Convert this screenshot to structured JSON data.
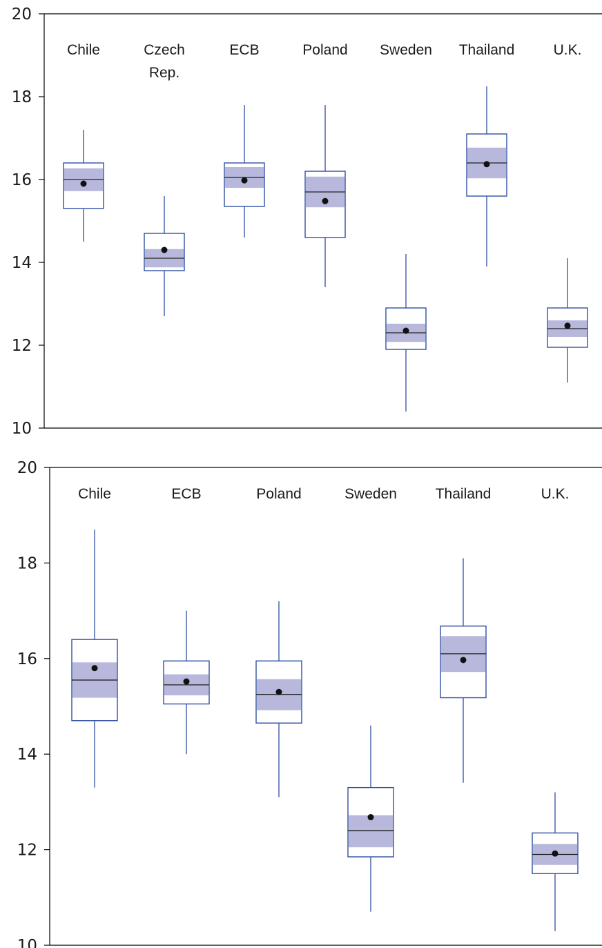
{
  "colors": {
    "box_stroke": "#2f4fa3",
    "notch_fill": "#b7b8dc",
    "median": "#222222",
    "mean_dot": "#111111",
    "axis": "#000000"
  },
  "chart_data": [
    {
      "type": "box",
      "title": "",
      "xlabel": "",
      "ylabel": "",
      "ylim": [
        10,
        20
      ],
      "yticks": [
        "10",
        "12",
        "14",
        "16",
        "18",
        "20"
      ],
      "grid": false,
      "categories": [
        {
          "label_lines": [
            "Chile"
          ],
          "min": 14.5,
          "q1": 15.3,
          "median": 16.0,
          "q3": 16.4,
          "max": 17.2,
          "mean": 15.9,
          "ci": [
            15.72,
            16.27
          ]
        },
        {
          "label_lines": [
            "Czech",
            "Rep."
          ],
          "min": 12.7,
          "q1": 13.8,
          "median": 14.1,
          "q3": 14.7,
          "max": 15.6,
          "mean": 14.3,
          "ci": [
            13.88,
            14.32
          ]
        },
        {
          "label_lines": [
            "ECB"
          ],
          "min": 14.6,
          "q1": 15.35,
          "median": 16.05,
          "q3": 16.4,
          "max": 17.8,
          "mean": 15.98,
          "ci": [
            15.8,
            16.3
          ]
        },
        {
          "label_lines": [
            "Poland"
          ],
          "min": 13.4,
          "q1": 14.6,
          "median": 15.7,
          "q3": 16.2,
          "max": 17.8,
          "mean": 15.48,
          "ci": [
            15.33,
            16.07
          ]
        },
        {
          "label_lines": [
            "Sweden"
          ],
          "min": 10.4,
          "q1": 11.9,
          "median": 12.3,
          "q3": 12.9,
          "max": 14.2,
          "mean": 12.35,
          "ci": [
            12.08,
            12.52
          ]
        },
        {
          "label_lines": [
            "Thailand"
          ],
          "min": 13.9,
          "q1": 15.6,
          "median": 16.4,
          "q3": 17.1,
          "max": 18.25,
          "mean": 16.37,
          "ci": [
            16.03,
            16.77
          ]
        },
        {
          "label_lines": [
            "U.K."
          ],
          "min": 11.1,
          "q1": 11.95,
          "median": 12.4,
          "q3": 12.9,
          "max": 14.1,
          "mean": 12.47,
          "ci": [
            12.2,
            12.6
          ]
        }
      ]
    },
    {
      "type": "box",
      "title": "",
      "xlabel": "",
      "ylabel": "",
      "ylim": [
        10,
        20
      ],
      "yticks": [
        "10",
        "12",
        "14",
        "16",
        "18",
        "20"
      ],
      "grid": false,
      "categories": [
        {
          "label_lines": [
            "Chile"
          ],
          "min": 13.3,
          "q1": 14.7,
          "median": 15.55,
          "q3": 16.4,
          "max": 18.7,
          "mean": 15.8,
          "ci": [
            15.18,
            15.92
          ]
        },
        {
          "label_lines": [
            "ECB"
          ],
          "min": 14.0,
          "q1": 15.05,
          "median": 15.45,
          "q3": 15.95,
          "max": 17.0,
          "mean": 15.52,
          "ci": [
            15.23,
            15.67
          ]
        },
        {
          "label_lines": [
            "Poland"
          ],
          "min": 13.1,
          "q1": 14.65,
          "median": 15.25,
          "q3": 15.95,
          "max": 17.2,
          "mean": 15.3,
          "ci": [
            14.92,
            15.57
          ]
        },
        {
          "label_lines": [
            "Sweden"
          ],
          "min": 10.7,
          "q1": 11.85,
          "median": 12.4,
          "q3": 13.3,
          "max": 14.6,
          "mean": 12.68,
          "ci": [
            12.05,
            12.72
          ]
        },
        {
          "label_lines": [
            "Thailand"
          ],
          "min": 13.4,
          "q1": 15.18,
          "median": 16.1,
          "q3": 16.68,
          "max": 18.1,
          "mean": 15.97,
          "ci": [
            15.72,
            16.47
          ]
        },
        {
          "label_lines": [
            "U.K."
          ],
          "min": 10.3,
          "q1": 11.5,
          "median": 11.9,
          "q3": 12.35,
          "max": 13.2,
          "mean": 11.92,
          "ci": [
            11.68,
            12.12
          ]
        }
      ]
    }
  ]
}
